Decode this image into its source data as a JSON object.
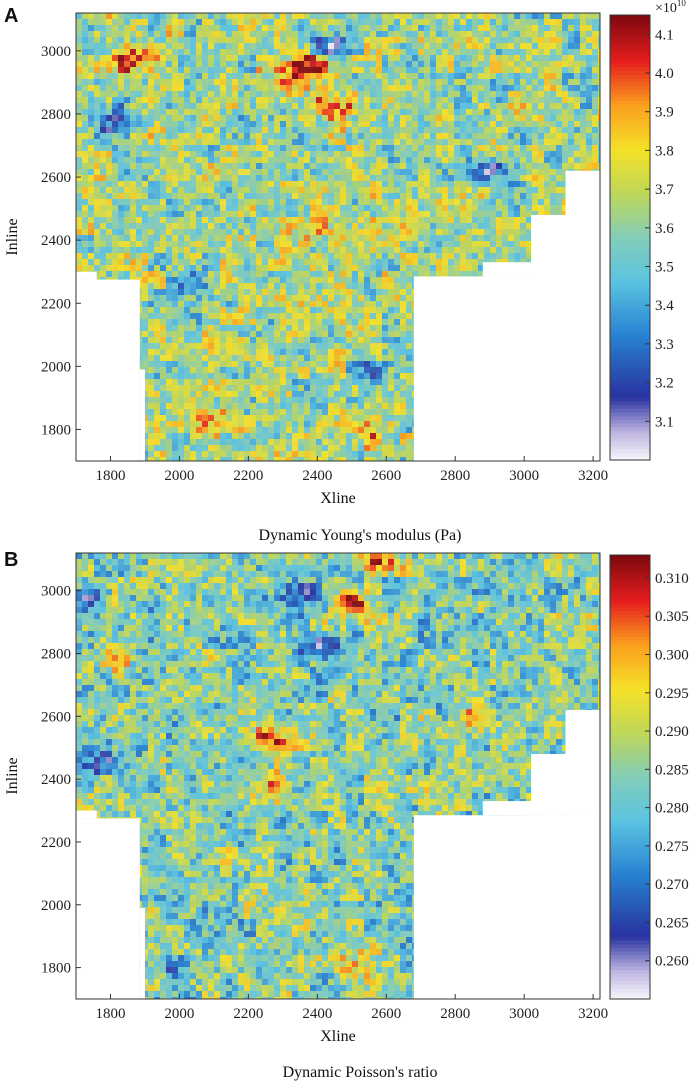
{
  "chart_data": [
    {
      "type": "heatmap",
      "panel_label": "A",
      "caption": "Dynamic Young's modulus (Pa)",
      "xlabel": "Xline",
      "ylabel": "Inline",
      "xlim": [
        1700,
        3220
      ],
      "ylim": [
        1700,
        3120
      ],
      "x_ticks": [
        1800,
        2000,
        2200,
        2400,
        2600,
        2800,
        3000,
        3200
      ],
      "y_ticks": [
        1800,
        2000,
        2200,
        2400,
        2600,
        2800,
        3000
      ],
      "colorbar": {
        "multiplier": "×10",
        "exponent": "10",
        "range": [
          3.0,
          4.15
        ],
        "ticks": [
          "3.1",
          "3.2",
          "3.3",
          "3.4",
          "3.5",
          "3.6",
          "3.7",
          "3.8",
          "3.9",
          "4.0",
          "4.1"
        ],
        "tick_values": [
          3.1,
          3.2,
          3.3,
          3.4,
          3.5,
          3.6,
          3.7,
          3.8,
          3.9,
          4.0,
          4.1
        ]
      },
      "baseline": 0.55,
      "hotspots": [
        {
          "x": 1870,
          "y": 2975,
          "v": 1.0
        },
        {
          "x": 2390,
          "y": 2960,
          "v": 0.95
        },
        {
          "x": 2440,
          "y": 2830,
          "v": 0.92
        },
        {
          "x": 2320,
          "y": 2910,
          "v": 0.88
        },
        {
          "x": 2090,
          "y": 1820,
          "v": 0.85
        },
        {
          "x": 2150,
          "y": 2060,
          "v": 0.8
        },
        {
          "x": 2530,
          "y": 1800,
          "v": 0.8
        },
        {
          "x": 2660,
          "y": 2430,
          "v": 0.75
        },
        {
          "x": 2400,
          "y": 2440,
          "v": 0.72
        }
      ],
      "coldspots": [
        {
          "x": 1800,
          "y": 2780,
          "v": 0.12
        },
        {
          "x": 2430,
          "y": 3010,
          "v": 0.15
        },
        {
          "x": 2050,
          "y": 2250,
          "v": 0.25
        },
        {
          "x": 2900,
          "y": 2620,
          "v": 0.2
        },
        {
          "x": 2550,
          "y": 1990,
          "v": 0.3
        }
      ]
    },
    {
      "type": "heatmap",
      "panel_label": "B",
      "caption": "Dynamic Poisson's ratio",
      "xlabel": "Xline",
      "ylabel": "Inline",
      "xlim": [
        1700,
        3220
      ],
      "ylim": [
        1700,
        3120
      ],
      "x_ticks": [
        1800,
        2000,
        2200,
        2400,
        2600,
        2800,
        3000,
        3200
      ],
      "y_ticks": [
        1800,
        2000,
        2200,
        2400,
        2600,
        2800,
        3000
      ],
      "colorbar": {
        "range": [
          0.255,
          0.313
        ],
        "ticks": [
          "0.260",
          "0.265",
          "0.270",
          "0.275",
          "0.280",
          "0.285",
          "0.290",
          "0.295",
          "0.300",
          "0.305",
          "0.310"
        ],
        "tick_values": [
          0.26,
          0.265,
          0.27,
          0.275,
          0.28,
          0.285,
          0.29,
          0.295,
          0.3,
          0.305,
          0.31
        ]
      },
      "baseline": 0.5,
      "hotspots": [
        {
          "x": 2270,
          "y": 2520,
          "v": 0.92
        },
        {
          "x": 2270,
          "y": 2380,
          "v": 0.85
        },
        {
          "x": 2500,
          "y": 2960,
          "v": 0.9
        },
        {
          "x": 2850,
          "y": 2600,
          "v": 0.82
        },
        {
          "x": 1810,
          "y": 2780,
          "v": 0.75
        },
        {
          "x": 2520,
          "y": 1800,
          "v": 0.78
        },
        {
          "x": 2580,
          "y": 3100,
          "v": 0.85
        }
      ],
      "coldspots": [
        {
          "x": 2360,
          "y": 2990,
          "v": 0.05
        },
        {
          "x": 2410,
          "y": 2810,
          "v": 0.12
        },
        {
          "x": 1730,
          "y": 2970,
          "v": 0.15
        },
        {
          "x": 1780,
          "y": 2450,
          "v": 0.28
        },
        {
          "x": 1980,
          "y": 1780,
          "v": 0.3
        }
      ]
    }
  ]
}
